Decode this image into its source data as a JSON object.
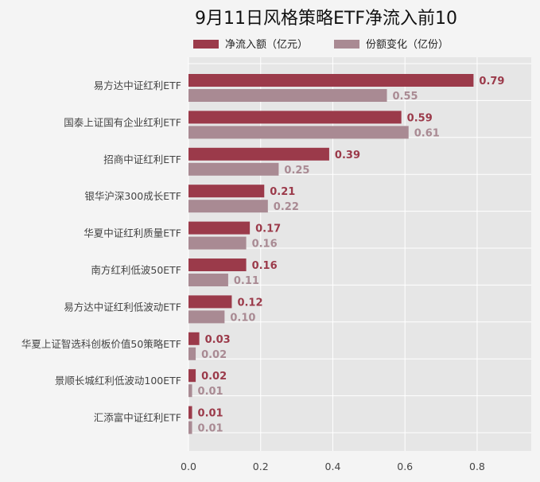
{
  "chart_data": {
    "type": "bar",
    "orientation": "horizontal",
    "title": "9月11日风格策略ETF净流入前10",
    "categories": [
      "易方达中证红利ETF",
      "国泰上证国有企业红利ETF",
      "招商中证红利ETF",
      "银华沪深300成长ETF",
      "华夏中证红利质量ETF",
      "南方红利低波50ETF",
      "易方达中证红利低波动ETF",
      "华夏上证智选科创板价值50策略ETF",
      "景顺长城红利低波动100ETF",
      "汇添富中证红利ETF"
    ],
    "series": [
      {
        "name": "净流入额（亿元）",
        "color": "#9b3a4a",
        "values": [
          0.79,
          0.59,
          0.39,
          0.21,
          0.17,
          0.16,
          0.12,
          0.03,
          0.02,
          0.01
        ],
        "labels": [
          "0.79",
          "0.59",
          "0.39",
          "0.21",
          "0.17",
          "0.16",
          "0.12",
          "0.03",
          "0.02",
          "0.01"
        ]
      },
      {
        "name": "份额变化（亿份）",
        "color": "#a98a93",
        "values": [
          0.55,
          0.61,
          0.25,
          0.22,
          0.16,
          0.11,
          0.1,
          0.02,
          0.01,
          0.01
        ],
        "labels": [
          "0.55",
          "0.61",
          "0.25",
          "0.22",
          "0.16",
          "0.11",
          "0.10",
          "0.02",
          "0.01",
          "0.01"
        ]
      }
    ],
    "xlim": [
      0,
      0.95
    ],
    "xticks": [
      0,
      0.2,
      0.4,
      0.6,
      0.8
    ],
    "xtick_labels": [
      "0.0",
      "0.2",
      "0.4",
      "0.6",
      "0.8"
    ],
    "xlabel": "",
    "ylabel": "",
    "grid": true,
    "legend_position": "top"
  },
  "colors": {
    "page_background": "#f4f4f4",
    "plot_background": "#e6e6e6",
    "grid": "#ffffff"
  }
}
